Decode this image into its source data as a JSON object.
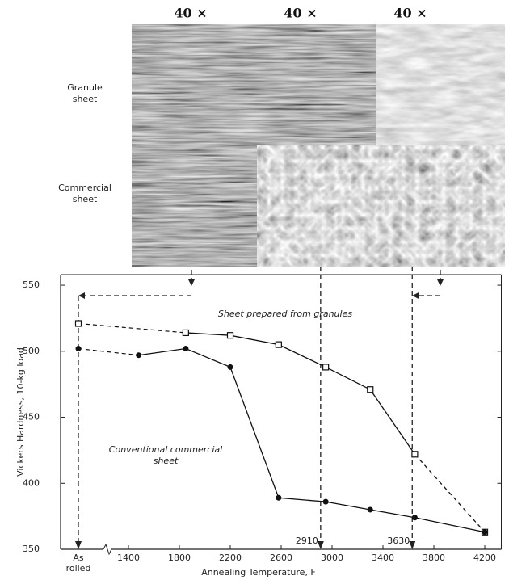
{
  "micrographs": {
    "magnifications": [
      "40 ×",
      "40 ×",
      "40 ×"
    ],
    "rows": [
      "Granule sheet",
      "Commercial sheet"
    ]
  },
  "chart_data": {
    "type": "line",
    "xlabel": "Annealing Temperature, F",
    "ylabel": "Vickers Hardness, 10-kg load",
    "as_rolled_label": "As rolled",
    "xlim": [
      1200,
      4330
    ],
    "xticks": [
      1400,
      1800,
      2200,
      2600,
      3000,
      3400,
      3800,
      4200
    ],
    "ylim": [
      350,
      558
    ],
    "yticks": [
      350,
      400,
      450,
      500,
      550
    ],
    "reference_lines": [
      2910,
      3630
    ],
    "series": [
      {
        "name": "Sheet prepared from granules",
        "color": "#111111",
        "marker": "square",
        "dashed_tail": true,
        "as_rolled": 521,
        "x": [
          1850,
          2200,
          2580,
          2950,
          3300,
          3650,
          4200
        ],
        "values": [
          514,
          512,
          505,
          488,
          471,
          422,
          363
        ]
      },
      {
        "name": "Conventional commercial sheet",
        "color": "#111111",
        "marker": "circle",
        "dashed_tail": false,
        "as_rolled": 502,
        "x": [
          1480,
          1850,
          2200,
          2580,
          2950,
          3300,
          3650,
          4200
        ],
        "values": [
          497,
          502,
          488,
          389,
          386,
          380,
          374,
          363
        ]
      }
    ]
  }
}
